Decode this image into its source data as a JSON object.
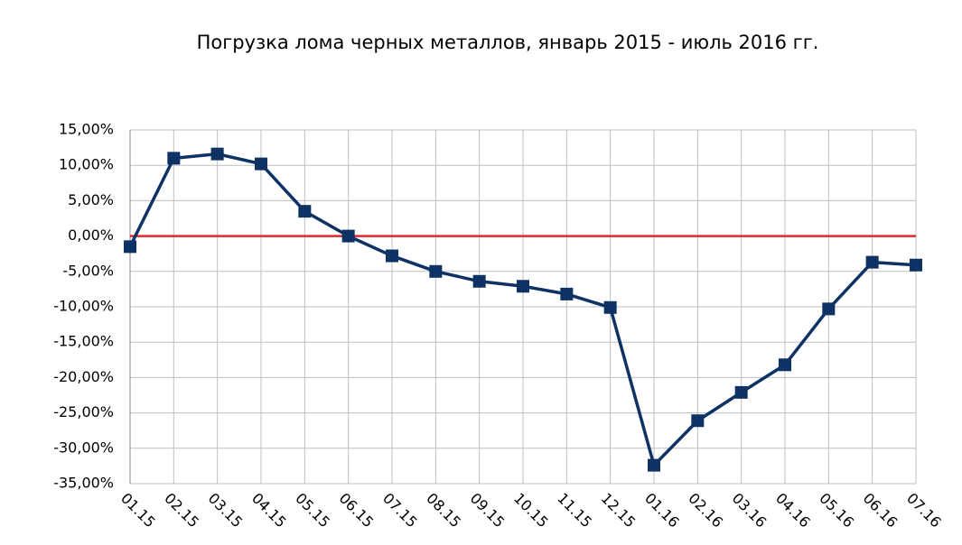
{
  "chart_data": {
    "type": "line",
    "title": "Погрузка лома черных металлов, январь 2015 - июль 2016 гг.",
    "categories": [
      "01.15",
      "02.15",
      "03.15",
      "04.15",
      "05.15",
      "06.15",
      "07.15",
      "08.15",
      "09.15",
      "10.15",
      "11.15",
      "12.15",
      "01.16",
      "02.16",
      "03.16",
      "04.16",
      "05.16",
      "06.16",
      "07.16"
    ],
    "series": [
      {
        "color": "#0d3263",
        "values": [
          -1.5,
          11.0,
          11.6,
          10.2,
          3.5,
          0.0,
          -2.8,
          -5.0,
          -6.4,
          -7.1,
          -8.2,
          -10.1,
          -32.4,
          -26.1,
          -22.1,
          -18.2,
          -10.3,
          -3.7,
          -4.1
        ]
      }
    ],
    "ylim": [
      -35,
      15
    ],
    "yticks": [
      {
        "value": -35,
        "label": "-35,00%"
      },
      {
        "value": -30,
        "label": "-30,00%"
      },
      {
        "value": -25,
        "label": "-25,00%"
      },
      {
        "value": -20,
        "label": "-20,00%"
      },
      {
        "value": -15,
        "label": "-15,00%"
      },
      {
        "value": -10,
        "label": "-10,00%"
      },
      {
        "value": -5,
        "label": "-5,00%"
      },
      {
        "value": 0,
        "label": "0,00%"
      },
      {
        "value": 5,
        "label": "5,00%"
      },
      {
        "value": 10,
        "label": "10,00%"
      },
      {
        "value": 15,
        "label": "15,00%"
      }
    ],
    "grid": true,
    "reference_line": {
      "value": 0,
      "color": "#e0282d"
    }
  }
}
